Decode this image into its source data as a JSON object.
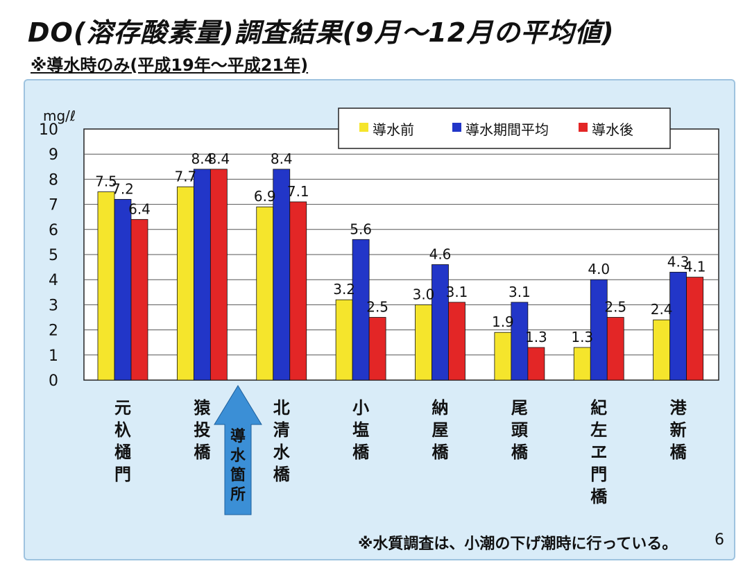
{
  "header": {
    "title": "DO(溶存酸素量)調査結果(9月～12月の平均値)",
    "subtitle": "※導水時のみ(平成19年～平成21年)"
  },
  "footer": {
    "note": "※水質調査は、小潮の下げ潮時に行っている。",
    "page": "6"
  },
  "chart_data": {
    "type": "bar",
    "ylabel": "mg/ℓ",
    "ylim": [
      0,
      10
    ],
    "yticks": [
      0,
      1,
      2,
      3,
      4,
      5,
      6,
      7,
      8,
      9,
      10
    ],
    "grid": true,
    "legend_position": "top-right",
    "categories": [
      "元杁樋門",
      "猿投橋",
      "北清水橋",
      "小塩橋",
      "納屋橋",
      "尾頭橋",
      "紀左ヱ門橋",
      "港新橋"
    ],
    "series": [
      {
        "name": "導水前",
        "color": "#f5e52c",
        "values": [
          7.5,
          7.7,
          6.9,
          3.2,
          3.0,
          1.9,
          1.3,
          2.4
        ]
      },
      {
        "name": "導水期間平均",
        "color": "#2236c8",
        "values": [
          7.2,
          8.4,
          8.4,
          5.6,
          4.6,
          3.1,
          4.0,
          4.3
        ]
      },
      {
        "name": "導水後",
        "color": "#e32626",
        "values": [
          6.4,
          8.4,
          7.1,
          2.5,
          3.1,
          1.3,
          2.5,
          4.1
        ]
      }
    ],
    "annotation": {
      "text": "導水箇所",
      "between": [
        "猿投橋",
        "北清水橋"
      ],
      "color": "#3b8fd6"
    }
  }
}
